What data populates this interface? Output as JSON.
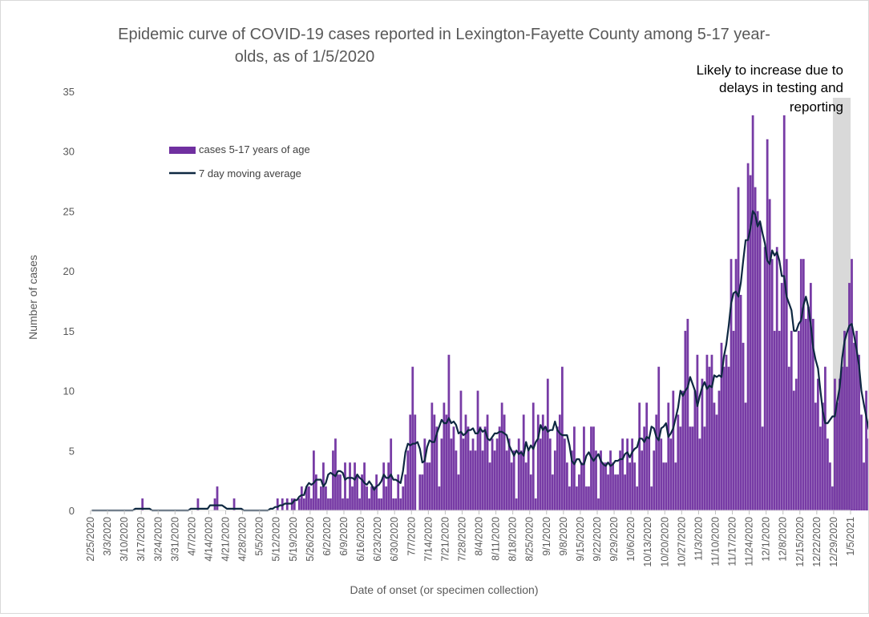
{
  "chart_data": {
    "type": "bar",
    "title": "Epidemic curve of COVID-19 cases reported in Lexington-Fayette County among 5-17 year-olds, as of 1/5/2020",
    "title_lines": [
      "Epidemic curve of COVID-19 cases reported in Lexington-Fayette County among 5-17 year-",
      "olds, as of 1/5/2020"
    ],
    "xlabel": "Date of onset (or specimen collection)",
    "ylabel": "Number of cases",
    "ylim": [
      0,
      35
    ],
    "yticks": [
      0,
      5,
      10,
      15,
      20,
      25,
      30,
      35
    ],
    "grid": false,
    "legend_position": "upper-left inside plot",
    "x_start": "2/25/2020",
    "x_end": "1/5/2021",
    "x_tick_labels": [
      "2/25/2020",
      "3/3/2020",
      "3/10/2020",
      "3/17/2020",
      "3/24/2020",
      "3/31/2020",
      "4/7/2020",
      "4/14/2020",
      "4/21/2020",
      "4/28/2020",
      "5/5/2020",
      "5/12/2020",
      "5/19/2020",
      "5/26/2020",
      "6/2/2020",
      "6/9/2020",
      "6/16/2020",
      "6/23/2020",
      "6/30/2020",
      "7/7/2020",
      "7/14/2020",
      "7/21/2020",
      "7/28/2020",
      "8/4/2020",
      "8/11/2020",
      "8/18/2020",
      "8/25/2020",
      "9/1/2020",
      "9/8/2020",
      "9/15/2020",
      "9/22/2020",
      "9/29/2020",
      "10/6/2020",
      "10/13/2020",
      "10/20/2020",
      "10/27/2020",
      "11/3/2020",
      "11/10/2020",
      "11/17/2020",
      "11/24/2020",
      "12/1/2020",
      "12/8/2020",
      "12/15/2020",
      "12/22/2020",
      "12/29/2020",
      "1/5/2021"
    ],
    "annotation": {
      "lines": [
        "Likely to increase due to",
        "delays in testing and",
        "reporting"
      ],
      "shaded_from": "12/29/2020",
      "shaded_to": "1/5/2021"
    },
    "series": [
      {
        "name": "cases 5-17 years of age",
        "kind": "bar",
        "color": "#7030A0",
        "values": [
          0,
          0,
          0,
          0,
          0,
          0,
          0,
          0,
          0,
          0,
          0,
          0,
          0,
          0,
          0,
          0,
          0,
          0,
          0,
          0,
          0,
          1,
          0,
          0,
          0,
          0,
          0,
          0,
          0,
          0,
          0,
          0,
          0,
          0,
          0,
          0,
          0,
          0,
          0,
          0,
          0,
          0,
          0,
          0,
          1,
          0,
          0,
          0,
          0,
          0,
          0,
          1,
          2,
          0,
          0,
          0,
          0,
          0,
          0,
          1,
          0,
          0,
          0,
          0,
          0,
          0,
          0,
          0,
          0,
          0,
          0,
          0,
          0,
          0,
          0,
          0,
          0,
          1,
          0,
          1,
          0,
          1,
          0,
          1,
          1,
          0,
          1,
          2,
          1,
          2,
          2,
          1,
          5,
          3,
          1,
          2,
          4,
          2,
          1,
          1,
          5,
          6,
          3,
          3,
          1,
          4,
          1,
          4,
          2,
          4,
          3,
          1,
          3,
          4,
          2,
          1,
          2,
          2,
          3,
          1,
          1,
          4,
          2,
          4,
          6,
          1,
          1,
          3,
          1,
          2,
          3,
          5,
          8,
          12,
          8,
          0,
          3,
          3,
          6,
          4,
          4,
          9,
          8,
          7,
          2,
          6,
          9,
          8,
          13,
          6,
          7,
          5,
          3,
          10,
          6,
          8,
          7,
          5,
          6,
          5,
          10,
          7,
          5,
          7,
          8,
          4,
          6,
          5,
          6,
          7,
          9,
          8,
          5,
          6,
          4,
          5,
          1,
          6,
          5,
          8,
          4,
          5,
          3,
          9,
          1,
          8,
          6,
          8,
          7,
          11,
          6,
          3,
          5,
          7,
          8,
          12,
          6,
          4,
          2,
          5,
          7,
          2,
          3,
          4,
          7,
          2,
          2,
          7,
          7,
          5,
          1,
          5,
          4,
          4,
          3,
          5,
          4,
          3,
          3,
          5,
          6,
          3,
          6,
          4,
          6,
          4,
          2,
          9,
          5,
          7,
          9,
          6,
          2,
          5,
          8,
          12,
          6,
          4,
          4,
          9,
          6,
          10,
          4,
          8,
          7,
          10,
          15,
          16,
          7,
          7,
          10,
          13,
          6,
          11,
          7,
          13,
          12,
          13,
          9,
          8,
          10,
          14,
          12,
          13,
          12,
          21,
          15,
          21,
          27,
          18,
          14,
          9,
          29,
          28,
          33,
          27,
          25,
          24,
          7,
          22,
          31,
          26,
          21,
          15,
          22,
          15,
          19,
          33,
          21,
          12,
          15,
          10,
          11,
          15,
          21,
          21,
          16,
          17,
          19,
          16,
          9,
          11,
          7,
          9,
          12,
          6,
          4,
          2,
          11,
          9,
          11,
          12,
          15,
          12,
          19,
          21,
          14,
          15,
          13,
          8,
          4,
          10,
          6,
          6
        ]
      },
      {
        "name": "7 day moving average",
        "kind": "line",
        "color": "#0E2841"
      }
    ]
  }
}
